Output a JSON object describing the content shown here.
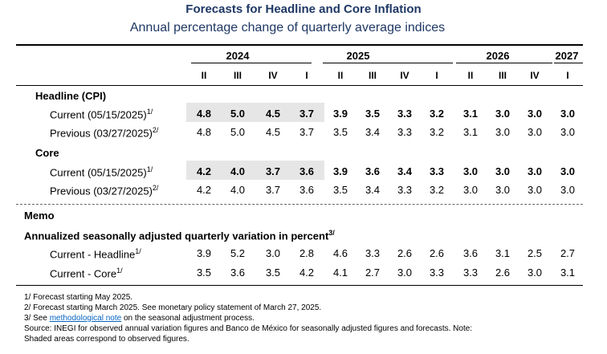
{
  "title": "Forecasts for Headline and Core Inflation",
  "subtitle": "Annual percentage change of quarterly average indices",
  "years": [
    "2024",
    "2025",
    "2026",
    "2027"
  ],
  "quarters": [
    "II",
    "III",
    "IV",
    "I",
    "II",
    "III",
    "IV",
    "I",
    "II",
    "III",
    "IV",
    "I"
  ],
  "sections": {
    "headline_label": "Headline (CPI)",
    "core_label": "Core",
    "memo_label": "Memo",
    "annualized_label": "Annualized seasonally adjusted quarterly variation in percent",
    "annualized_sup": "3/"
  },
  "rows": {
    "h_current": {
      "label": "Current (05/15/2025)",
      "sup": "1/",
      "values": [
        "4.8",
        "5.0",
        "4.5",
        "3.7",
        "3.9",
        "3.5",
        "3.3",
        "3.2",
        "3.1",
        "3.0",
        "3.0",
        "3.0"
      ]
    },
    "h_previous": {
      "label": "Previous (03/27/2025)",
      "sup": "2/",
      "values": [
        "4.8",
        "5.0",
        "4.5",
        "3.7",
        "3.5",
        "3.4",
        "3.3",
        "3.2",
        "3.1",
        "3.0",
        "3.0",
        "3.0"
      ]
    },
    "c_current": {
      "label": "Current (05/15/2025)",
      "sup": "1/",
      "values": [
        "4.2",
        "4.0",
        "3.7",
        "3.6",
        "3.9",
        "3.6",
        "3.4",
        "3.3",
        "3.0",
        "3.0",
        "3.0",
        "3.0"
      ]
    },
    "c_previous": {
      "label": "Previous (03/27/2025)",
      "sup": "2/",
      "values": [
        "4.2",
        "4.0",
        "3.7",
        "3.6",
        "3.5",
        "3.4",
        "3.3",
        "3.2",
        "3.0",
        "3.0",
        "3.0",
        "3.0"
      ]
    },
    "m_headline": {
      "label": "Current - Headline",
      "sup": "1/",
      "values": [
        "3.9",
        "5.2",
        "3.0",
        "2.8",
        "4.6",
        "3.3",
        "2.6",
        "2.6",
        "3.6",
        "3.1",
        "2.5",
        "2.7"
      ]
    },
    "m_core": {
      "label": "Current - Core",
      "sup": "1/",
      "values": [
        "3.5",
        "3.6",
        "3.5",
        "4.2",
        "4.1",
        "2.7",
        "3.0",
        "3.3",
        "3.3",
        "2.6",
        "3.0",
        "3.1"
      ]
    }
  },
  "footnotes": {
    "n1": "1/ Forecast starting May 2025.",
    "n2": "2/ Forecast starting March 2025. See monetary policy statement of March 27, 2025.",
    "n3_prefix": "3/ See ",
    "n3_link": "methodological note",
    "n3_suffix": " on the seasonal adjustment process.",
    "source": "Source: INEGI for observed annual variation figures and Banco de México for seasonally adjusted figures and forecasts. Note:",
    "shaded": "Shaded areas correspond to observed figures."
  }
}
